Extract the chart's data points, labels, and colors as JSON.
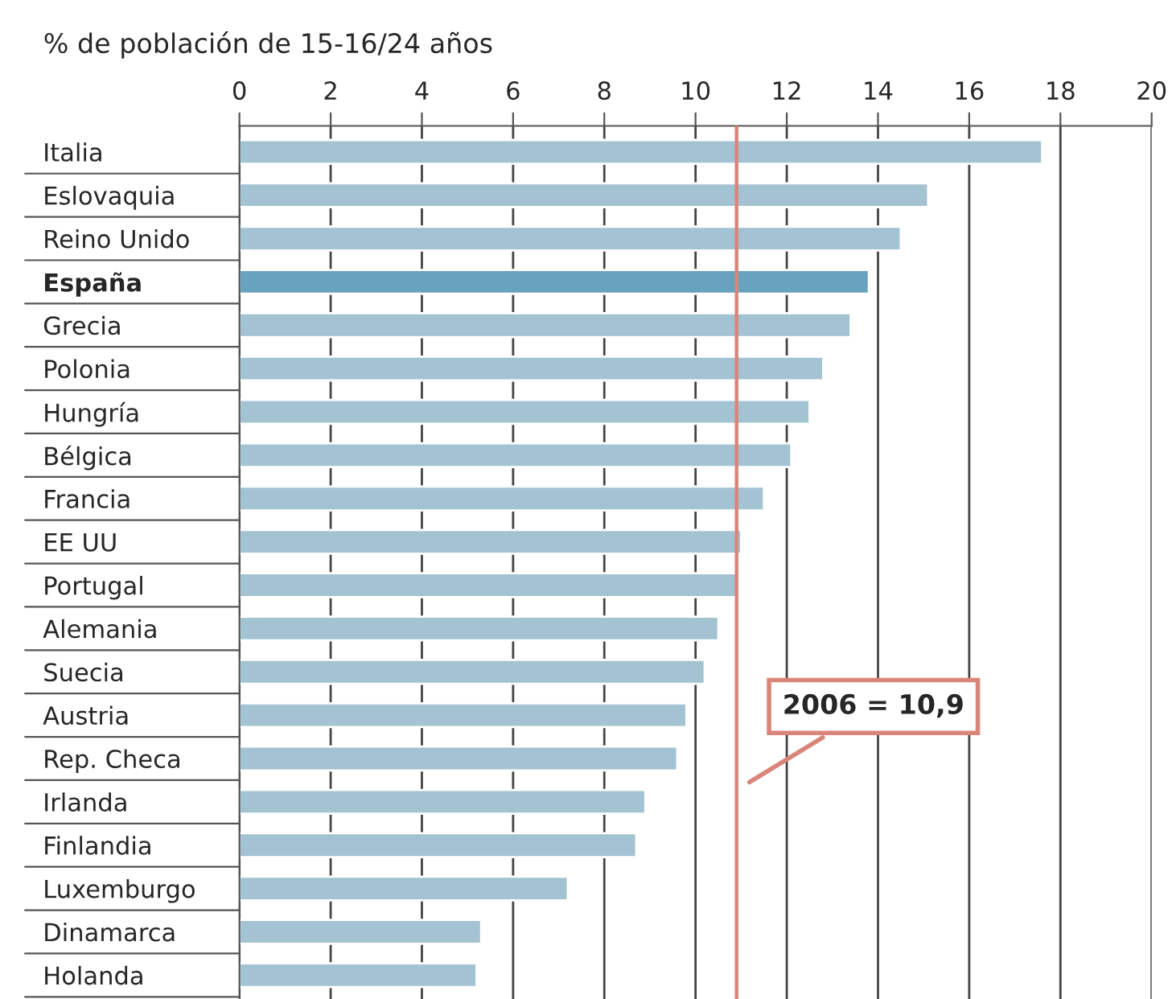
{
  "chart_data": {
    "type": "bar",
    "orientation": "horizontal",
    "title": "% de población de 15-16/24 años",
    "categories": [
      "Italia",
      "Eslovaquia",
      "Reino Unido",
      "España",
      "Grecia",
      "Polonia",
      "Hungría",
      "Bélgica",
      "Francia",
      "EE UU",
      "Portugal",
      "Alemania",
      "Suecia",
      "Austria",
      "Rep. Checa",
      "Irlanda",
      "Finlandia",
      "Luxemburgo",
      "Dinamarca",
      "Holanda"
    ],
    "values": [
      17.6,
      15.1,
      14.5,
      13.8,
      13.4,
      12.8,
      12.5,
      12.1,
      11.5,
      11.0,
      10.9,
      10.5,
      10.2,
      9.8,
      9.6,
      8.9,
      8.7,
      7.2,
      5.3,
      5.2
    ],
    "colors": [
      "#a3c2d2",
      "#a3c2d2",
      "#a3c2d2",
      "#67a3bf",
      "#a3c2d2",
      "#a3c2d2",
      "#a3c2d2",
      "#a3c2d2",
      "#a3c2d2",
      "#a3c2d2",
      "#a3c2d2",
      "#a3c2d2",
      "#a3c2d2",
      "#a3c2d2",
      "#a3c2d2",
      "#a3c2d2",
      "#a3c2d2",
      "#a3c2d2",
      "#a3c2d2",
      "#a3c2d2"
    ],
    "xlim": [
      0,
      20
    ],
    "xticks": [
      0,
      2,
      4,
      6,
      8,
      10,
      12,
      14,
      16,
      18,
      20
    ],
    "grid": "x",
    "ref_lines": [
      {
        "axis": "x",
        "value": 10.9,
        "label": "2006 = 10,9",
        "color": "#d9857a"
      }
    ]
  }
}
